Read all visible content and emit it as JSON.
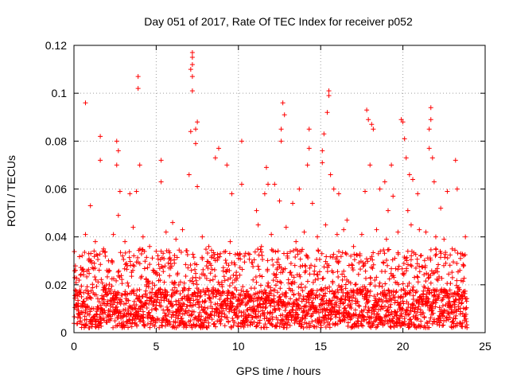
{
  "chart_data": {
    "type": "scatter",
    "title": "Day 051 of 2017, Rate Of TEC Index for receiver p052",
    "xlabel": "GPS time / hours",
    "ylabel": "ROTI / TECUs",
    "xlim": [
      0,
      25
    ],
    "ylim": [
      0,
      0.12
    ],
    "x_ticks": [
      0,
      5,
      10,
      15,
      20,
      25
    ],
    "y_ticks": [
      0,
      0.02,
      0.04,
      0.06,
      0.08,
      0.1,
      0.12
    ],
    "x_tick_labels": [
      "0",
      "5",
      "10",
      "15",
      "20",
      "25"
    ],
    "y_tick_labels": [
      "0",
      "0.02",
      "0.04",
      "0.06",
      "0.08",
      "0.1",
      "0.12"
    ],
    "grid": true,
    "marker": "plus",
    "color": "#ff0000",
    "series": [
      {
        "points": [
          [
            0.7,
            0.096
          ],
          [
            1.6,
            0.082
          ],
          [
            1.6,
            0.072
          ],
          [
            1.0,
            0.053
          ],
          [
            0.7,
            0.041
          ],
          [
            2.6,
            0.08
          ],
          [
            2.7,
            0.076
          ],
          [
            2.6,
            0.07
          ],
          [
            2.8,
            0.059
          ],
          [
            2.7,
            0.049
          ],
          [
            3.9,
            0.107
          ],
          [
            3.9,
            0.102
          ],
          [
            4.0,
            0.07
          ],
          [
            3.8,
            0.059
          ],
          [
            3.4,
            0.058
          ],
          [
            5.3,
            0.072
          ],
          [
            5.3,
            0.063
          ],
          [
            6.0,
            0.046
          ],
          [
            7.2,
            0.117
          ],
          [
            7.2,
            0.115
          ],
          [
            7.2,
            0.112
          ],
          [
            7.1,
            0.11
          ],
          [
            7.2,
            0.107
          ],
          [
            7.2,
            0.101
          ],
          [
            7.5,
            0.088
          ],
          [
            7.4,
            0.085
          ],
          [
            7.1,
            0.084
          ],
          [
            7.4,
            0.079
          ],
          [
            7.0,
            0.066
          ],
          [
            7.5,
            0.061
          ],
          [
            8.8,
            0.077
          ],
          [
            8.6,
            0.073
          ],
          [
            9.3,
            0.07
          ],
          [
            9.6,
            0.058
          ],
          [
            10.2,
            0.08
          ],
          [
            10.2,
            0.062
          ],
          [
            11.1,
            0.051
          ],
          [
            11.2,
            0.045
          ],
          [
            11.7,
            0.069
          ],
          [
            11.8,
            0.062
          ],
          [
            11.6,
            0.058
          ],
          [
            12.2,
            0.062
          ],
          [
            12.5,
            0.055
          ],
          [
            12.6,
            0.08
          ],
          [
            12.7,
            0.096
          ],
          [
            12.8,
            0.091
          ],
          [
            12.6,
            0.085
          ],
          [
            13.7,
            0.06
          ],
          [
            13.3,
            0.054
          ],
          [
            14.3,
            0.085
          ],
          [
            14.3,
            0.077
          ],
          [
            14.2,
            0.07
          ],
          [
            14.5,
            0.054
          ],
          [
            15.2,
            0.083
          ],
          [
            15.1,
            0.076
          ],
          [
            15.1,
            0.071
          ],
          [
            15.5,
            0.101
          ],
          [
            15.5,
            0.099
          ],
          [
            15.4,
            0.092
          ],
          [
            15.6,
            0.066
          ],
          [
            15.8,
            0.06
          ],
          [
            16.1,
            0.058
          ],
          [
            16.6,
            0.047
          ],
          [
            17.8,
            0.093
          ],
          [
            17.9,
            0.089
          ],
          [
            18.1,
            0.087
          ],
          [
            18.0,
            0.07
          ],
          [
            18.2,
            0.085
          ],
          [
            17.7,
            0.059
          ],
          [
            18.6,
            0.06
          ],
          [
            18.9,
            0.063
          ],
          [
            19.3,
            0.07
          ],
          [
            19.4,
            0.057
          ],
          [
            19.1,
            0.051
          ],
          [
            19.9,
            0.089
          ],
          [
            20.0,
            0.088
          ],
          [
            20.1,
            0.081
          ],
          [
            20.2,
            0.073
          ],
          [
            20.4,
            0.066
          ],
          [
            20.6,
            0.064
          ],
          [
            20.9,
            0.058
          ],
          [
            20.3,
            0.051
          ],
          [
            21.7,
            0.094
          ],
          [
            21.7,
            0.089
          ],
          [
            21.6,
            0.085
          ],
          [
            21.8,
            0.073
          ],
          [
            21.6,
            0.077
          ],
          [
            21.9,
            0.063
          ],
          [
            22.3,
            0.052
          ],
          [
            22.7,
            0.059
          ],
          [
            23.2,
            0.072
          ],
          [
            23.3,
            0.06
          ],
          [
            23.8,
            0.04
          ],
          [
            23.5,
            0.031
          ],
          [
            0.1,
            0.026
          ],
          [
            0.4,
            0.024
          ],
          [
            0.9,
            0.033
          ],
          [
            1.3,
            0.038
          ],
          [
            1.8,
            0.035
          ],
          [
            2.1,
            0.03
          ],
          [
            2.4,
            0.041
          ],
          [
            3.1,
            0.038
          ],
          [
            3.6,
            0.044
          ],
          [
            4.2,
            0.04
          ],
          [
            4.6,
            0.036
          ],
          [
            5.0,
            0.034
          ],
          [
            5.6,
            0.042
          ],
          [
            6.2,
            0.039
          ],
          [
            6.6,
            0.043
          ],
          [
            7.8,
            0.04
          ],
          [
            8.2,
            0.036
          ],
          [
            8.9,
            0.033
          ],
          [
            9.5,
            0.038
          ],
          [
            10.0,
            0.031
          ],
          [
            10.6,
            0.033
          ],
          [
            11.4,
            0.036
          ],
          [
            12.0,
            0.041
          ],
          [
            12.9,
            0.044
          ],
          [
            13.5,
            0.038
          ],
          [
            14.0,
            0.042
          ],
          [
            14.8,
            0.04
          ],
          [
            15.3,
            0.045
          ],
          [
            16.0,
            0.041
          ],
          [
            16.4,
            0.043
          ],
          [
            17.0,
            0.036
          ],
          [
            17.5,
            0.041
          ],
          [
            18.4,
            0.043
          ],
          [
            19.0,
            0.039
          ],
          [
            19.7,
            0.042
          ],
          [
            20.5,
            0.045
          ],
          [
            21.0,
            0.043
          ],
          [
            21.4,
            0.042
          ],
          [
            22.0,
            0.04
          ],
          [
            22.5,
            0.039
          ],
          [
            23.0,
            0.035
          ],
          [
            23.7,
            0.028
          ]
        ]
      }
    ],
    "dense_band": {
      "x_range": [
        0,
        23.9
      ],
      "y_range": [
        0.002,
        0.035
      ],
      "typical_max": 0.018,
      "note_points_shown_only": true
    }
  }
}
